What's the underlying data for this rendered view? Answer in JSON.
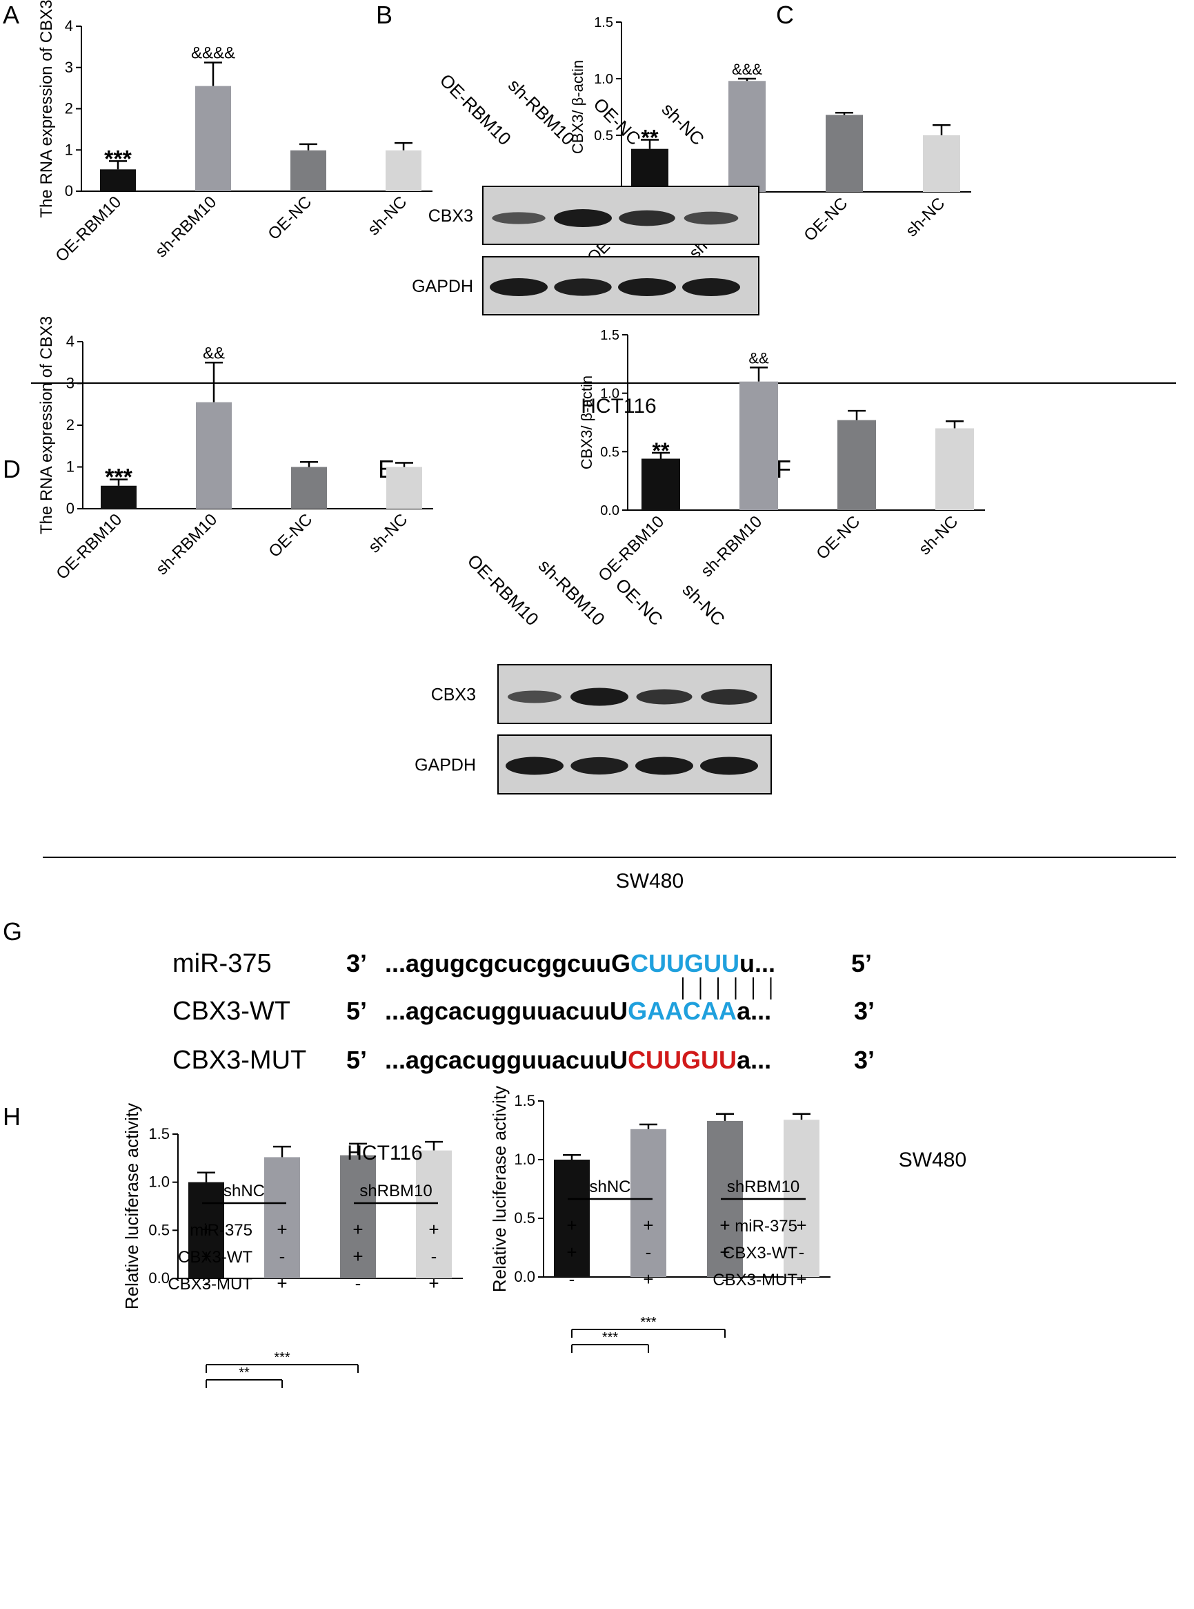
{
  "colors": {
    "black": "#000000",
    "bar_dark": "#111111",
    "bar_mid": "#9b9ca3",
    "bar_darkgray": "#7c7d80",
    "bar_light": "#d6d6d6",
    "seed_blue": "#1fa0dd",
    "mut_red": "#d11a1a",
    "blot_bg": "#d0d0d0",
    "band": "#1a1a1a"
  },
  "panel_letters": [
    "A",
    "B",
    "C",
    "D",
    "E",
    "F",
    "G",
    "H"
  ],
  "group_labels": {
    "top": "HCT116",
    "middle": "SW480"
  },
  "chart_data": [
    {
      "panel": "A",
      "type": "bar",
      "categories": [
        "OE-RBM10",
        "sh-RBM10",
        "OE-NC",
        "sh-NC"
      ],
      "values": [
        0.53,
        2.55,
        0.99,
        0.99
      ],
      "errors": [
        0.2,
        0.57,
        0.15,
        0.18
      ],
      "ylabel": "The RNA expression of CBX3",
      "ylim": [
        0,
        4
      ],
      "yticks": [
        "0",
        "1",
        "2",
        "3",
        "4"
      ],
      "annotations": [
        "***",
        "&&&&",
        "",
        ""
      ]
    },
    {
      "panel": "C",
      "type": "bar",
      "categories": [
        "OE-RBM10",
        "sh-RBM10",
        "OE-NC",
        "sh-NC"
      ],
      "values": [
        0.38,
        0.98,
        0.68,
        0.5
      ],
      "errors": [
        0.08,
        0.02,
        0.02,
        0.09
      ],
      "ylabel": "CBX3/ β-actin",
      "ylim": [
        0,
        1.5
      ],
      "yticks": [
        "0.0",
        "0.5",
        "1.0",
        "1.5"
      ],
      "annotations": [
        "**",
        "&&&",
        "",
        ""
      ]
    },
    {
      "panel": "D",
      "type": "bar",
      "categories": [
        "OE-RBM10",
        "sh-RBM10",
        "OE-NC",
        "sh-NC"
      ],
      "values": [
        0.55,
        2.55,
        1.0,
        1.0
      ],
      "errors": [
        0.15,
        0.95,
        0.12,
        0.1
      ],
      "ylabel": "The RNA expression of CBX3",
      "ylim": [
        0,
        4
      ],
      "yticks": [
        "0",
        "1",
        "2",
        "3",
        "4"
      ],
      "annotations": [
        "***",
        "&&",
        "",
        ""
      ]
    },
    {
      "panel": "F",
      "type": "bar",
      "categories": [
        "OE-RBM10",
        "sh-RBM10",
        "OE-NC",
        "sh-NC"
      ],
      "values": [
        0.44,
        1.1,
        0.77,
        0.7
      ],
      "errors": [
        0.05,
        0.12,
        0.08,
        0.06
      ],
      "ylabel": "CBX3/ β-actin",
      "ylim": [
        0,
        1.5
      ],
      "yticks": [
        "0.0",
        "0.5",
        "1.0",
        "1.5"
      ],
      "annotations": [
        "**",
        "&&",
        "",
        ""
      ]
    },
    {
      "panel": "H",
      "title": "HCT116",
      "type": "bar",
      "values": [
        1.0,
        1.26,
        1.28,
        1.33
      ],
      "errors": [
        0.1,
        0.11,
        0.12,
        0.09
      ],
      "ylabel": "Relative luciferase activity",
      "ylim": [
        0,
        1.5
      ],
      "yticks": [
        "0.0",
        "0.5",
        "1.0",
        "1.5"
      ],
      "group_headers": [
        "shNC",
        "shRBM10"
      ],
      "condition_rows": [
        {
          "label": "miR-375",
          "marks": [
            "+",
            "+",
            "+",
            "+"
          ]
        },
        {
          "label": "CBX3-WT",
          "marks": [
            "+",
            "-",
            "+",
            "-"
          ]
        },
        {
          "label": "CBX3-MUT",
          "marks": [
            "-",
            "+",
            "-",
            "+"
          ]
        }
      ],
      "comparisons": [
        {
          "from": 0,
          "to": 1,
          "label": "**"
        },
        {
          "from": 0,
          "to": 2,
          "label": "***"
        }
      ]
    },
    {
      "panel": "H",
      "title": "SW480",
      "type": "bar",
      "values": [
        1.0,
        1.26,
        1.33,
        1.34
      ],
      "errors": [
        0.04,
        0.04,
        0.06,
        0.05
      ],
      "ylabel": "Relative luciferase activity",
      "ylim": [
        0,
        1.5
      ],
      "yticks": [
        "0.0",
        "0.5",
        "1.0",
        "1.5"
      ],
      "group_headers": [
        "shNC",
        "shRBM10"
      ],
      "condition_rows": [
        {
          "label": "miR-375",
          "marks": [
            "+",
            "+",
            "+",
            "+"
          ]
        },
        {
          "label": "CBX3-WT",
          "marks": [
            "+",
            "-",
            "+",
            "-"
          ]
        },
        {
          "label": "CBX3-MUT",
          "marks": [
            "-",
            "+",
            "-",
            "+"
          ]
        }
      ],
      "comparisons": [
        {
          "from": 0,
          "to": 1,
          "label": "***"
        },
        {
          "from": 0,
          "to": 2,
          "label": "***"
        }
      ]
    }
  ],
  "blots": [
    {
      "panel": "B",
      "lanes": [
        "OE-RBM10",
        "sh-RBM10",
        "OE-NC",
        "sh-NC"
      ],
      "rows": [
        {
          "label": "CBX3",
          "intensity": [
            0.45,
            1.0,
            0.8,
            0.55
          ]
        },
        {
          "label": "GAPDH",
          "intensity": [
            1.0,
            0.95,
            1.0,
            1.0
          ]
        }
      ]
    },
    {
      "panel": "E",
      "lanes": [
        "OE-RBM10",
        "sh-RBM10",
        "OE-NC",
        "sh-NC"
      ],
      "rows": [
        {
          "label": "CBX3",
          "intensity": [
            0.5,
            1.0,
            0.75,
            0.8
          ]
        },
        {
          "label": "GAPDH",
          "intensity": [
            1.0,
            0.95,
            1.0,
            1.0
          ]
        }
      ]
    }
  ],
  "sequence_panel": {
    "rows": [
      {
        "name": "miR-375",
        "end_left": "3’",
        "prefix": "...agugcgcucggcuuG",
        "seed": "CUUGUU",
        "suffix": "u...",
        "end_right": "5’",
        "seed_color": "#1fa0dd"
      },
      {
        "name": "CBX3-WT",
        "end_left": "5’",
        "prefix": "...agcacugguuacuuU",
        "seed": "GAACAA",
        "suffix": "a...",
        "end_right": "3’",
        "seed_color": "#1fa0dd"
      },
      {
        "name": "CBX3-MUT",
        "end_left": "5’",
        "prefix": "...agcacugguuacuuU",
        "seed": "CUUGUU",
        "suffix": "a...",
        "end_right": "3’",
        "seed_color": "#d11a1a"
      }
    ],
    "pair_lines": 6
  }
}
